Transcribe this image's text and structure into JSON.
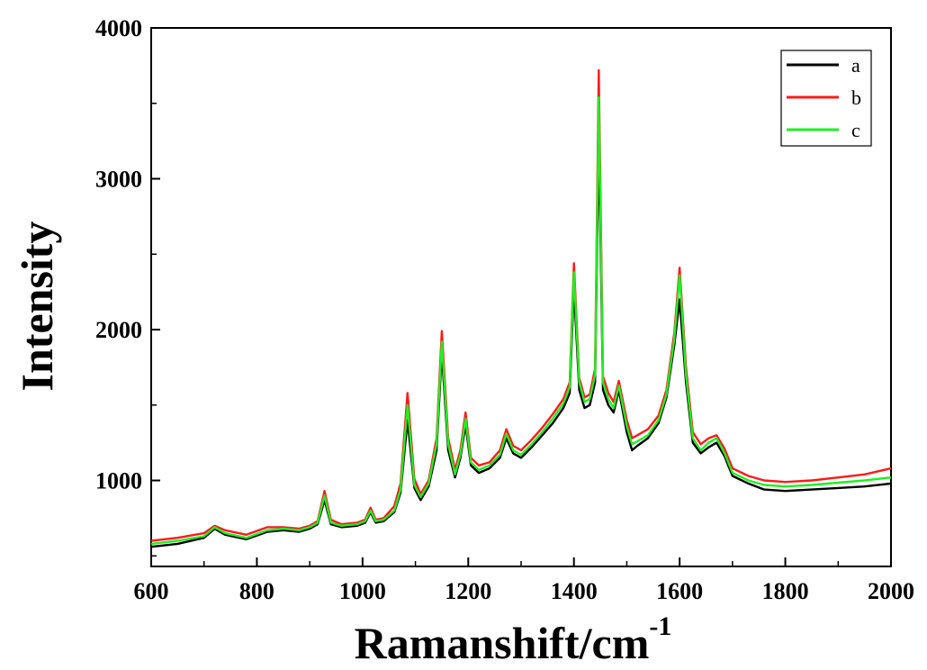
{
  "chart_data": {
    "type": "line",
    "title": "",
    "xlabel": "Ramanshift/cm",
    "xlabel_superscript": "-1",
    "ylabel": "Intensity",
    "xlim": [
      600,
      2000
    ],
    "ylim": [
      430,
      4000
    ],
    "x_ticks": [
      600,
      800,
      1000,
      1200,
      1400,
      1600,
      1800,
      2000
    ],
    "x_tick_labels": [
      "600",
      "800",
      "1000",
      "1200",
      "1400",
      "1600",
      "1800",
      "2000"
    ],
    "y_ticks": [
      1000,
      2000,
      3000,
      4000
    ],
    "y_tick_labels": [
      "1000",
      "2000",
      "3000",
      "4000"
    ],
    "grid": false,
    "legend_position": "top-right",
    "series": [
      {
        "name": "a",
        "color": "#000000",
        "x": [
          600,
          650,
          700,
          720,
          740,
          780,
          820,
          850,
          880,
          900,
          915,
          928,
          940,
          960,
          990,
          1005,
          1015,
          1025,
          1040,
          1060,
          1072,
          1085,
          1098,
          1110,
          1125,
          1140,
          1150,
          1162,
          1175,
          1185,
          1195,
          1205,
          1220,
          1240,
          1260,
          1272,
          1285,
          1300,
          1320,
          1340,
          1360,
          1380,
          1392,
          1400,
          1410,
          1420,
          1430,
          1440,
          1447,
          1455,
          1465,
          1475,
          1485,
          1500,
          1510,
          1520,
          1540,
          1560,
          1575,
          1590,
          1600,
          1612,
          1625,
          1640,
          1655,
          1670,
          1685,
          1700,
          1730,
          1760,
          1800,
          1850,
          1900,
          1950,
          2000
        ],
        "values": [
          560,
          580,
          620,
          680,
          640,
          610,
          660,
          670,
          660,
          680,
          710,
          870,
          710,
          690,
          700,
          720,
          790,
          720,
          730,
          790,
          920,
          1400,
          950,
          870,
          960,
          1200,
          1850,
          1200,
          1020,
          1150,
          1370,
          1100,
          1050,
          1080,
          1150,
          1280,
          1180,
          1150,
          1220,
          1300,
          1380,
          1480,
          1580,
          2280,
          1600,
          1480,
          1500,
          1650,
          3300,
          1600,
          1500,
          1450,
          1600,
          1320,
          1200,
          1230,
          1280,
          1380,
          1550,
          1900,
          2200,
          1650,
          1250,
          1180,
          1220,
          1250,
          1160,
          1030,
          980,
          940,
          930,
          940,
          950,
          960,
          980
        ]
      },
      {
        "name": "b",
        "color": "#ff1a1a",
        "x": [
          600,
          650,
          700,
          720,
          740,
          780,
          820,
          850,
          880,
          900,
          915,
          928,
          940,
          960,
          990,
          1005,
          1015,
          1025,
          1040,
          1060,
          1072,
          1085,
          1098,
          1110,
          1125,
          1140,
          1150,
          1162,
          1175,
          1185,
          1195,
          1205,
          1220,
          1240,
          1260,
          1272,
          1285,
          1300,
          1320,
          1340,
          1360,
          1380,
          1392,
          1400,
          1410,
          1420,
          1430,
          1440,
          1447,
          1455,
          1465,
          1475,
          1485,
          1500,
          1510,
          1520,
          1540,
          1560,
          1575,
          1590,
          1600,
          1612,
          1625,
          1640,
          1655,
          1670,
          1685,
          1700,
          1730,
          1760,
          1800,
          1850,
          1900,
          1950,
          2000
        ],
        "values": [
          600,
          620,
          650,
          700,
          670,
          640,
          690,
          690,
          680,
          700,
          730,
          930,
          740,
          710,
          720,
          740,
          820,
          740,
          750,
          830,
          980,
          1580,
          1010,
          910,
          1000,
          1280,
          1990,
          1280,
          1070,
          1200,
          1450,
          1150,
          1100,
          1120,
          1200,
          1340,
          1230,
          1200,
          1270,
          1350,
          1440,
          1540,
          1650,
          2440,
          1680,
          1550,
          1570,
          1740,
          3720,
          1690,
          1580,
          1520,
          1660,
          1400,
          1280,
          1300,
          1340,
          1430,
          1600,
          1980,
          2410,
          1750,
          1320,
          1240,
          1280,
          1300,
          1210,
          1080,
          1030,
          1000,
          990,
          1000,
          1020,
          1040,
          1080
        ]
      },
      {
        "name": "c",
        "color": "#22ee22",
        "x": [
          600,
          650,
          700,
          720,
          740,
          780,
          820,
          850,
          880,
          900,
          915,
          928,
          940,
          960,
          990,
          1005,
          1015,
          1025,
          1040,
          1060,
          1072,
          1085,
          1098,
          1110,
          1125,
          1140,
          1150,
          1162,
          1175,
          1185,
          1195,
          1205,
          1220,
          1240,
          1260,
          1272,
          1285,
          1300,
          1320,
          1340,
          1360,
          1380,
          1392,
          1400,
          1410,
          1420,
          1430,
          1440,
          1447,
          1455,
          1465,
          1475,
          1485,
          1500,
          1510,
          1520,
          1540,
          1560,
          1575,
          1590,
          1600,
          1612,
          1625,
          1640,
          1655,
          1670,
          1685,
          1700,
          1730,
          1760,
          1800,
          1850,
          1900,
          1950,
          2000
        ],
        "values": [
          580,
          600,
          630,
          690,
          650,
          620,
          670,
          680,
          670,
          690,
          720,
          900,
          720,
          700,
          710,
          730,
          800,
          730,
          740,
          800,
          940,
          1500,
          970,
          890,
          980,
          1240,
          1920,
          1240,
          1040,
          1170,
          1410,
          1120,
          1070,
          1100,
          1170,
          1310,
          1200,
          1170,
          1240,
          1320,
          1410,
          1510,
          1620,
          2380,
          1650,
          1520,
          1540,
          1700,
          3540,
          1650,
          1540,
          1480,
          1630,
          1360,
          1240,
          1260,
          1300,
          1400,
          1570,
          1940,
          2360,
          1700,
          1280,
          1200,
          1250,
          1280,
          1180,
          1050,
          1000,
          970,
          960,
          970,
          985,
          1000,
          1020
        ]
      }
    ]
  }
}
